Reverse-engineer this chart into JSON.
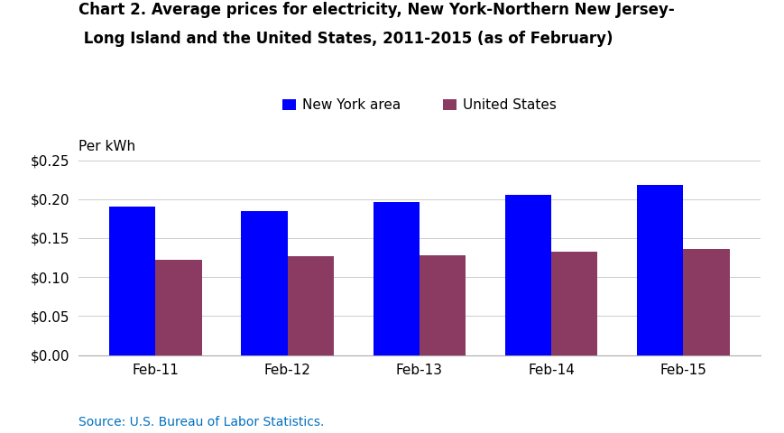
{
  "title_line1": "Chart 2. Average prices for electricity, New York-Northern New Jersey-",
  "title_line2": " Long Island and the United States, 2011-2015 (as of February)",
  "ylabel_top": "Per kWh",
  "categories": [
    "Feb-11",
    "Feb-12",
    "Feb-13",
    "Feb-14",
    "Feb-15"
  ],
  "ny_values": [
    0.19,
    0.185,
    0.196,
    0.205,
    0.218
  ],
  "us_values": [
    0.122,
    0.127,
    0.128,
    0.133,
    0.136
  ],
  "ny_color": "#0000FF",
  "us_color": "#8B3A62",
  "ny_label": "New York area",
  "us_label": "United States",
  "ylim": [
    0,
    0.25
  ],
  "yticks": [
    0.0,
    0.05,
    0.1,
    0.15,
    0.2,
    0.25
  ],
  "source_text": "Source: U.S. Bureau of Labor Statistics.",
  "source_color": "#0070C0",
  "bar_width": 0.35,
  "background_color": "#FFFFFF"
}
